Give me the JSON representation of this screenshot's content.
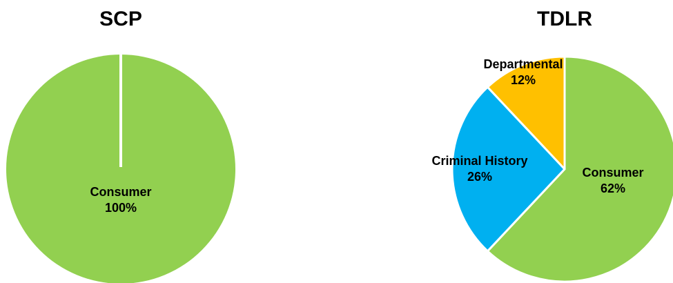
{
  "chart_data": [
    {
      "type": "pie",
      "title": "SCP",
      "categories": [
        "Consumer"
      ],
      "values": [
        100
      ],
      "labels": [
        "100%"
      ],
      "colors": [
        "#92D050"
      ]
    },
    {
      "type": "pie",
      "title": "TDLR",
      "categories": [
        "Consumer",
        "Criminal History",
        "Departmental"
      ],
      "values": [
        62,
        26,
        12
      ],
      "labels": [
        "62%",
        "26%",
        "12%"
      ],
      "colors": [
        "#92D050",
        "#00B0F0",
        "#FFC000"
      ]
    }
  ]
}
